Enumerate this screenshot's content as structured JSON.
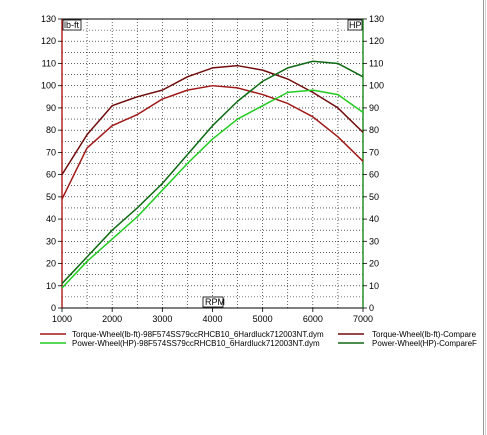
{
  "chart_data": {
    "type": "line",
    "xlabel": "RPM",
    "ylabel_left": "lb-ft",
    "ylabel_right": "HP",
    "xlim": [
      1000,
      7000
    ],
    "ylim": [
      0,
      130
    ],
    "x_ticks": [
      1000,
      2000,
      3000,
      4000,
      5000,
      6000,
      7000
    ],
    "y_ticks": [
      0,
      10,
      20,
      30,
      40,
      50,
      60,
      70,
      80,
      90,
      100,
      110,
      120,
      130
    ],
    "grid": true,
    "legend_position": "bottom",
    "series": [
      {
        "name": "Torque-Wheel(lb-ft)-98F574SS79ccRHCB10_6Hardluck712003NT.dym",
        "color": "#a01818",
        "x": [
          1000,
          1500,
          2000,
          2500,
          3000,
          3500,
          4000,
          4500,
          5000,
          5500,
          6000,
          6500,
          7000
        ],
        "y": [
          49,
          72,
          82,
          87,
          94,
          98,
          100,
          99,
          96,
          92,
          86,
          77,
          66
        ]
      },
      {
        "name": "Torque-Wheel(lb-ft)-Compare",
        "color": "#700c0c",
        "x": [
          1000,
          1500,
          2000,
          2500,
          3000,
          3500,
          4000,
          4500,
          5000,
          5500,
          6000,
          6500,
          7000
        ],
        "y": [
          60,
          78,
          91,
          95,
          98,
          104,
          108,
          109,
          107,
          103,
          97,
          90,
          79
        ]
      },
      {
        "name": "Power-Wheel(HP)-98F574SS79ccRHCB10_6Hardluck712003NT.dym",
        "color": "#22cc22",
        "x": [
          1000,
          1500,
          2000,
          2500,
          3000,
          3500,
          4000,
          4500,
          5000,
          5500,
          6000,
          6500,
          7000
        ],
        "y": [
          9,
          21,
          31,
          41,
          53,
          65,
          76,
          85,
          91,
          97,
          98,
          96,
          88
        ]
      },
      {
        "name": "Power-Wheel(HP)-CompareF",
        "color": "#0f6a14",
        "x": [
          1000,
          1500,
          2000,
          2500,
          3000,
          3500,
          4000,
          4500,
          5000,
          5500,
          6000,
          6500,
          7000
        ],
        "y": [
          11,
          23,
          35,
          45,
          56,
          69,
          82,
          93,
          102,
          108,
          111,
          110,
          104
        ]
      }
    ]
  }
}
